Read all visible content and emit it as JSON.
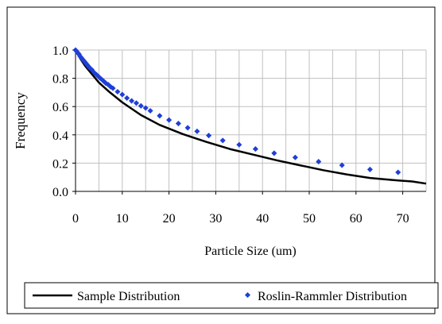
{
  "chart_data": {
    "type": "line",
    "title": "",
    "xlabel": "Particle Size (um)",
    "ylabel": "Frequency",
    "xlim": [
      0,
      75
    ],
    "ylim": [
      0,
      1
    ],
    "xticks": [
      "0",
      "10",
      "20",
      "30",
      "40",
      "50",
      "60",
      "70"
    ],
    "yticks": [
      "0.0",
      "0.2",
      "0.4",
      "0.6",
      "0.8",
      "1.0"
    ],
    "grid": true,
    "legend_position": "bottom",
    "series": [
      {
        "name": "Sample Distribution",
        "style": "line",
        "color": "#000000",
        "x": [
          0,
          1,
          2,
          3,
          4,
          5,
          7,
          10,
          14,
          18,
          23,
          28,
          33,
          38,
          43,
          48,
          53,
          58,
          63,
          68,
          72,
          75
        ],
        "y": [
          1.0,
          0.94,
          0.89,
          0.85,
          0.81,
          0.77,
          0.71,
          0.63,
          0.54,
          0.47,
          0.405,
          0.35,
          0.3,
          0.26,
          0.22,
          0.185,
          0.15,
          0.12,
          0.095,
          0.08,
          0.07,
          0.055
        ]
      },
      {
        "name": "Roslin-Rammler Distribution",
        "style": "markers",
        "color": "#1f3fd6",
        "x": [
          0,
          0.25,
          0.5,
          0.75,
          1,
          1.25,
          1.5,
          1.75,
          2,
          2.25,
          2.5,
          2.75,
          3,
          3.5,
          4,
          4.5,
          5,
          5.5,
          6,
          6.5,
          7,
          7.5,
          8,
          9,
          10,
          11,
          12,
          13,
          14,
          15,
          16,
          18,
          20,
          22,
          24,
          26,
          28.5,
          31.5,
          35,
          38.5,
          42.5,
          47,
          52,
          57,
          63,
          69
        ],
        "y": [
          1.0,
          0.99,
          0.98,
          0.97,
          0.955,
          0.945,
          0.935,
          0.925,
          0.915,
          0.905,
          0.895,
          0.885,
          0.875,
          0.86,
          0.84,
          0.825,
          0.81,
          0.795,
          0.78,
          0.765,
          0.755,
          0.74,
          0.73,
          0.705,
          0.685,
          0.66,
          0.64,
          0.625,
          0.605,
          0.59,
          0.57,
          0.535,
          0.505,
          0.48,
          0.45,
          0.425,
          0.395,
          0.36,
          0.33,
          0.3,
          0.27,
          0.24,
          0.21,
          0.185,
          0.155,
          0.135
        ]
      }
    ]
  }
}
